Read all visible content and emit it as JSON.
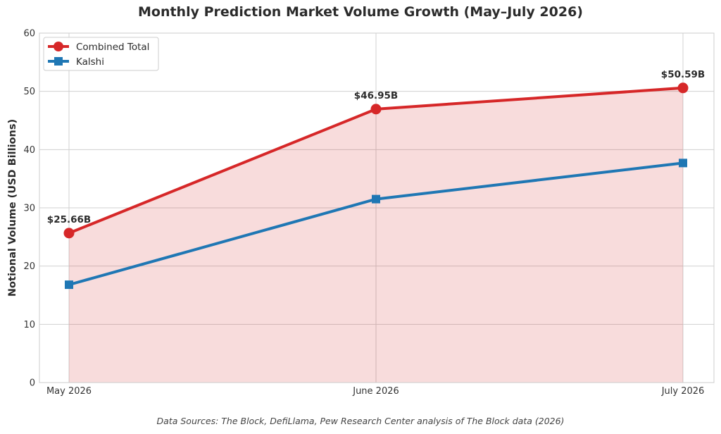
{
  "chart_data": {
    "type": "line",
    "title": "Monthly Prediction Market Volume Growth (May–July 2026)",
    "xlabel": "",
    "ylabel": "Notional Volume (USD Billions)",
    "categories": [
      "May 2026",
      "June 2026",
      "July 2026"
    ],
    "ylim": [
      0,
      60
    ],
    "yticks": [
      0,
      10,
      20,
      30,
      40,
      50,
      60
    ],
    "grid": true,
    "legend_position": "top-left",
    "series": [
      {
        "name": "Combined Total",
        "values": [
          25.66,
          46.95,
          50.59
        ],
        "color": "#d62728",
        "marker": "circle",
        "fill_area": true,
        "data_labels": [
          "$25.66B",
          "$46.95B",
          "$50.59B"
        ]
      },
      {
        "name": "Kalshi",
        "values": [
          16.8,
          31.5,
          37.7
        ],
        "color": "#1f77b4",
        "marker": "square",
        "fill_area": false
      }
    ],
    "footnote": "Data Sources: The Block, DefiLlama, Pew Research Center analysis of The Block data (2026)"
  }
}
